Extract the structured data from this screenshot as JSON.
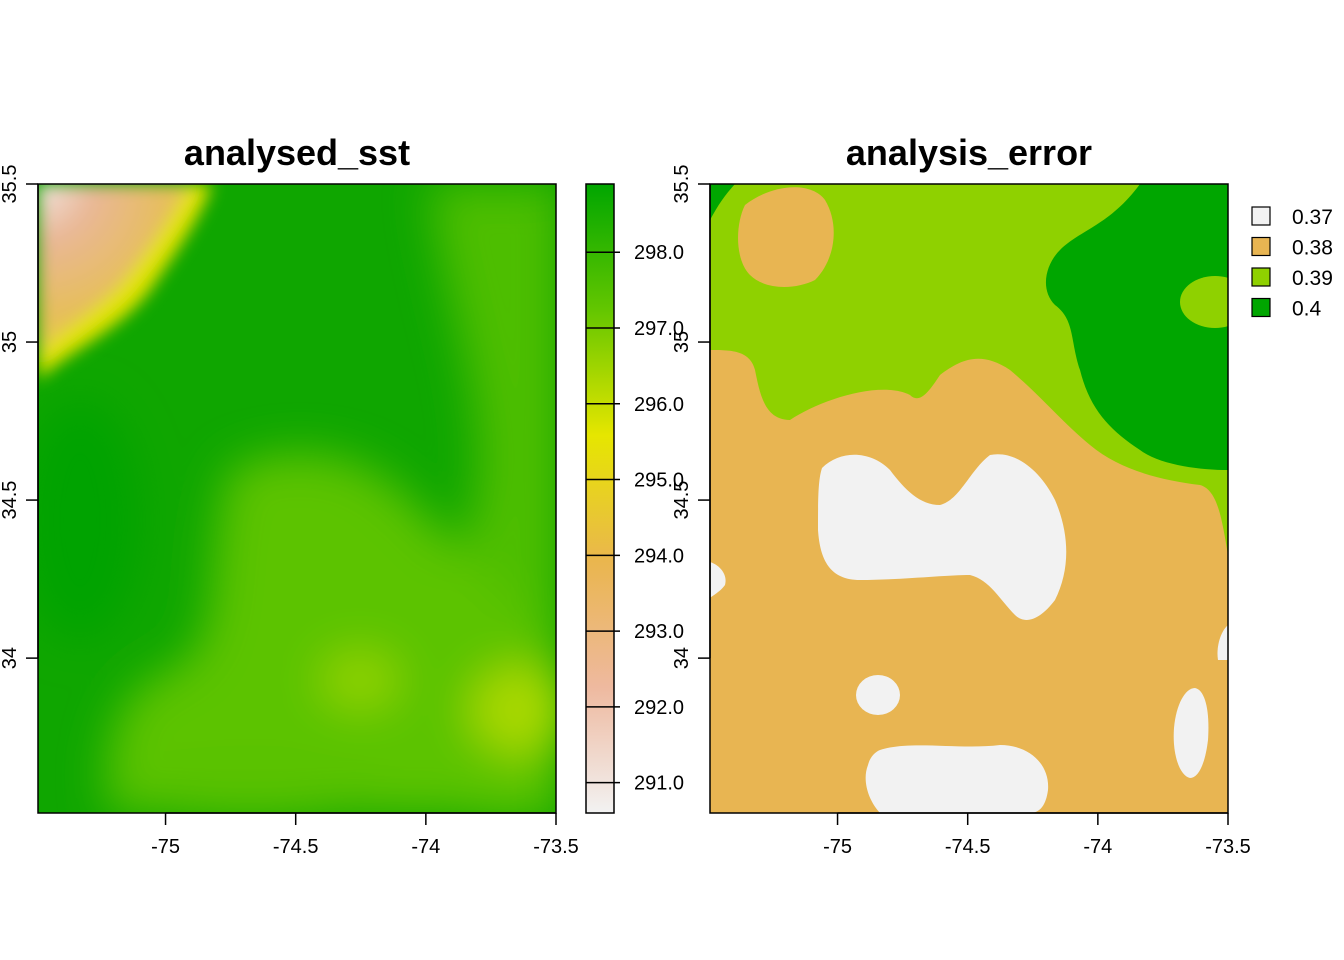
{
  "chart_data": [
    {
      "type": "heatmap",
      "title": "analysed_sst",
      "xlabel": "",
      "ylabel": "",
      "x_ticks": [
        "-75",
        "-74.5",
        "-74",
        "-73.5"
      ],
      "x_tick_values": [
        -75,
        -74.5,
        -74,
        -73.5
      ],
      "y_ticks": [
        "34",
        "34.5",
        "35",
        "35.5"
      ],
      "y_tick_values": [
        34,
        34.5,
        35,
        35.5
      ],
      "xlim": [
        -75.49,
        -73.5
      ],
      "ylim": [
        33.51,
        35.5
      ],
      "legend": {
        "type": "continuous",
        "position": "right",
        "ticks": [
          "291.0",
          "292.0",
          "293.0",
          "294.0",
          "295.0",
          "296.0",
          "297.0",
          "298.0"
        ],
        "tick_values": [
          291,
          292,
          293,
          294,
          295,
          296,
          297,
          298
        ],
        "range": [
          290.6,
          298.9
        ],
        "colors": [
          "#F2F2F2",
          "#EEB99F",
          "#EAB64E",
          "#E6E600",
          "#63C600",
          "#00A600"
        ]
      },
      "field_description_values": {
        "northwest_corner": 290.8,
        "coastal_front": 295.0,
        "main_body": 298.0,
        "southeast_patch": 295.8
      }
    },
    {
      "type": "heatmap",
      "title": "analysis_error",
      "xlabel": "",
      "ylabel": "",
      "x_ticks": [
        "-75",
        "-74.5",
        "-74",
        "-73.5"
      ],
      "x_tick_values": [
        -75,
        -74.5,
        -74,
        -73.5
      ],
      "y_ticks": [
        "34",
        "34.5",
        "35",
        "35.5"
      ],
      "y_tick_values": [
        34,
        34.5,
        35,
        35.5
      ],
      "xlim": [
        -75.49,
        -73.5
      ],
      "ylim": [
        33.51,
        35.5
      ],
      "legend": {
        "type": "categorical",
        "position": "right",
        "entries": [
          {
            "label": "0.37",
            "color": "#F2F2F2"
          },
          {
            "label": "0.38",
            "color": "#E8B552"
          },
          {
            "label": "0.39",
            "color": "#8FD100"
          },
          {
            "label": "0.4",
            "color": "#00A600"
          }
        ]
      }
    }
  ]
}
